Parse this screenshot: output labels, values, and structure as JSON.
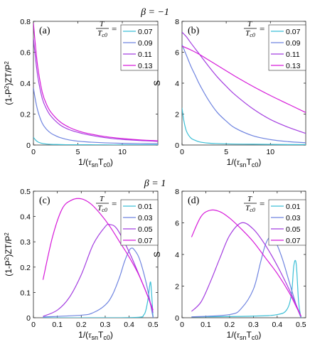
{
  "headings": {
    "top": "β = −1",
    "bottom": "β = 1"
  },
  "legend_title": {
    "top": "T",
    "bottom": "T",
    "eq": "="
  },
  "legend_title_sub": {
    "top": "Tc0",
    "bottom": "Tc0"
  },
  "colors": {
    "cyan": "#3cbfd6",
    "blue": "#6f84e0",
    "purple": "#a43ee0",
    "magenta": "#d61ad9"
  },
  "chart_data": [
    {
      "id": "a",
      "panel_label": "(a)",
      "type": "line",
      "xlabel": "1/(τsnTc0)",
      "ylabel": "(1-P²)ZT/P²",
      "xlim": [
        0,
        14
      ],
      "ylim": [
        0,
        0.8
      ],
      "xticks": [
        0,
        5,
        10
      ],
      "yticks": [
        0,
        0.2,
        0.4,
        0.6,
        0.8
      ],
      "xtick_labels": [
        "0",
        "5",
        "10"
      ],
      "ytick_labels": [
        "0",
        "0.2",
        "0.4",
        "0.6",
        "0.8"
      ],
      "legend_position": "top-right",
      "series": [
        {
          "name": "0.07",
          "color": "cyan",
          "x": [
            0,
            0.2,
            0.5,
            1,
            1.5,
            2,
            3,
            4,
            6,
            8,
            10,
            12,
            14
          ],
          "y": [
            0.05,
            0.035,
            0.02,
            0.01,
            0.006,
            0.004,
            0.003,
            0.002,
            0.002,
            0.001,
            0.001,
            0.001,
            0.001
          ]
        },
        {
          "name": "0.09",
          "color": "blue",
          "x": [
            0,
            0.2,
            0.5,
            1,
            1.5,
            2,
            2.5,
            3,
            4,
            5,
            6,
            8,
            10,
            12,
            14
          ],
          "y": [
            0.37,
            0.3,
            0.22,
            0.14,
            0.1,
            0.075,
            0.06,
            0.048,
            0.033,
            0.025,
            0.02,
            0.014,
            0.011,
            0.009,
            0.008
          ]
        },
        {
          "name": "0.11",
          "color": "purple",
          "x": [
            0,
            0.2,
            0.5,
            1,
            1.5,
            2,
            3,
            4,
            5,
            6,
            8,
            10,
            12,
            14
          ],
          "y": [
            0.69,
            0.58,
            0.44,
            0.3,
            0.23,
            0.185,
            0.13,
            0.1,
            0.082,
            0.068,
            0.048,
            0.036,
            0.029,
            0.024
          ]
        },
        {
          "name": "0.13",
          "color": "magenta",
          "x": [
            0,
            0.2,
            0.5,
            1,
            1.5,
            2,
            3,
            4,
            5,
            6,
            8,
            10,
            12,
            14
          ],
          "y": [
            0.79,
            0.66,
            0.5,
            0.34,
            0.26,
            0.21,
            0.15,
            0.115,
            0.092,
            0.076,
            0.055,
            0.042,
            0.033,
            0.027
          ]
        }
      ]
    },
    {
      "id": "b",
      "panel_label": "(b)",
      "type": "line",
      "xlabel": "1/(τsnTc0)",
      "ylabel": "S",
      "xlim": [
        0,
        14
      ],
      "ylim": [
        0,
        8
      ],
      "xticks": [
        0,
        5,
        10
      ],
      "yticks": [
        0,
        2,
        4,
        6,
        8
      ],
      "xtick_labels": [
        "0",
        "5",
        "10"
      ],
      "ytick_labels": [
        "0",
        "2",
        "4",
        "6",
        "8"
      ],
      "legend_position": "top-right",
      "series": [
        {
          "name": "0.07",
          "color": "cyan",
          "x": [
            0,
            0.2,
            0.5,
            1,
            1.5,
            2,
            3,
            4,
            6,
            8,
            10,
            12,
            14
          ],
          "y": [
            2.4,
            1.6,
            0.9,
            0.45,
            0.3,
            0.2,
            0.12,
            0.09,
            0.06,
            0.05,
            0.04,
            0.03,
            0.03
          ]
        },
        {
          "name": "0.09",
          "color": "blue",
          "x": [
            0,
            0.5,
            1,
            1.5,
            2,
            3,
            4,
            5,
            6,
            8,
            10,
            12,
            14
          ],
          "y": [
            6.5,
            5.8,
            5.1,
            4.5,
            3.9,
            2.9,
            2.1,
            1.55,
            1.1,
            0.6,
            0.35,
            0.22,
            0.15
          ]
        },
        {
          "name": "0.11",
          "color": "purple",
          "x": [
            0,
            0.5,
            1,
            2,
            3,
            4,
            5,
            6,
            8,
            10,
            12,
            14
          ],
          "y": [
            7.3,
            7.0,
            6.6,
            5.85,
            5.1,
            4.4,
            3.8,
            3.25,
            2.35,
            1.65,
            1.15,
            0.75
          ]
        },
        {
          "name": "0.13",
          "color": "magenta",
          "x": [
            0,
            1,
            2,
            3,
            4,
            5,
            6,
            8,
            10,
            12,
            14
          ],
          "y": [
            6.4,
            6.15,
            5.85,
            5.5,
            5.15,
            4.8,
            4.45,
            3.8,
            3.2,
            2.65,
            2.1
          ]
        }
      ]
    },
    {
      "id": "c",
      "panel_label": "(c)",
      "type": "line",
      "xlabel": "1/(τsnTc0)",
      "ylabel": "(1-P²)ZT/P²",
      "xlim": [
        0,
        0.52
      ],
      "ylim": [
        0,
        0.5
      ],
      "xticks": [
        0,
        0.1,
        0.2,
        0.3,
        0.4,
        0.5
      ],
      "yticks": [
        0,
        0.1,
        0.2,
        0.3,
        0.4,
        0.5
      ],
      "xtick_labels": [
        "0",
        "0.1",
        "0.2",
        "0.3",
        "0.4",
        "0.5"
      ],
      "ytick_labels": [
        "0",
        "0.1",
        "0.2",
        "0.3",
        "0.4",
        "0.5"
      ],
      "legend_position": "top-right",
      "series": [
        {
          "name": "0.01",
          "color": "cyan",
          "x": [
            0.04,
            0.3,
            0.44,
            0.46,
            0.47,
            0.48,
            0.485,
            0.49,
            0.495,
            0.5
          ],
          "y": [
            0.0,
            0.0,
            0.002,
            0.01,
            0.03,
            0.08,
            0.12,
            0.14,
            0.08,
            0.0
          ]
        },
        {
          "name": "0.03",
          "color": "blue",
          "x": [
            0.04,
            0.2,
            0.25,
            0.3,
            0.33,
            0.36,
            0.38,
            0.4,
            0.41,
            0.42,
            0.44,
            0.46,
            0.48,
            0.5
          ],
          "y": [
            0.003,
            0.01,
            0.02,
            0.05,
            0.09,
            0.16,
            0.22,
            0.265,
            0.275,
            0.27,
            0.24,
            0.18,
            0.1,
            0.0
          ]
        },
        {
          "name": "0.05",
          "color": "purple",
          "x": [
            0.04,
            0.1,
            0.15,
            0.2,
            0.25,
            0.3,
            0.32,
            0.35,
            0.4,
            0.45,
            0.48,
            0.5
          ],
          "y": [
            0.005,
            0.03,
            0.08,
            0.17,
            0.29,
            0.36,
            0.368,
            0.35,
            0.26,
            0.15,
            0.08,
            0.02
          ]
        },
        {
          "name": "0.07",
          "color": "magenta",
          "x": [
            0.04,
            0.08,
            0.12,
            0.16,
            0.2,
            0.24,
            0.28,
            0.32,
            0.36,
            0.4,
            0.44,
            0.48,
            0.5
          ],
          "y": [
            0.15,
            0.32,
            0.43,
            0.465,
            0.47,
            0.45,
            0.41,
            0.36,
            0.3,
            0.24,
            0.17,
            0.08,
            0.03
          ]
        }
      ]
    },
    {
      "id": "d",
      "panel_label": "(d)",
      "type": "line",
      "xlabel": "1/(τsnTc0)",
      "ylabel": "S",
      "xlim": [
        0,
        0.52
      ],
      "ylim": [
        0,
        8
      ],
      "xticks": [
        0,
        0.1,
        0.2,
        0.3,
        0.4,
        0.5
      ],
      "yticks": [
        0,
        2,
        4,
        6,
        8
      ],
      "xtick_labels": [
        "0",
        "0.1",
        "0.2",
        "0.3",
        "0.4",
        "0.5"
      ],
      "ytick_labels": [
        "0",
        "2",
        "4",
        "6",
        "8"
      ],
      "legend_position": "top-right",
      "series": [
        {
          "name": "0.01",
          "color": "cyan",
          "x": [
            0.04,
            0.3,
            0.4,
            0.44,
            0.46,
            0.47,
            0.48,
            0.49,
            0.5
          ],
          "y": [
            0.05,
            0.1,
            0.2,
            0.5,
            1.5,
            3.3,
            3.4,
            1.0,
            0.0
          ]
        },
        {
          "name": "0.03",
          "color": "blue",
          "x": [
            0.04,
            0.2,
            0.25,
            0.3,
            0.33,
            0.35,
            0.37,
            0.39,
            0.42,
            0.45,
            0.48,
            0.5
          ],
          "y": [
            0.05,
            0.2,
            0.6,
            1.8,
            3.5,
            4.6,
            5.1,
            4.9,
            3.8,
            2.3,
            0.8,
            0.0
          ]
        },
        {
          "name": "0.05",
          "color": "purple",
          "x": [
            0.04,
            0.08,
            0.12,
            0.16,
            0.2,
            0.25,
            0.3,
            0.35,
            0.4,
            0.45,
            0.48,
            0.5
          ],
          "y": [
            0.4,
            1.0,
            2.3,
            3.8,
            5.2,
            6.0,
            5.6,
            4.6,
            3.3,
            1.8,
            0.8,
            0.1
          ]
        },
        {
          "name": "0.07",
          "color": "magenta",
          "x": [
            0.04,
            0.08,
            0.12,
            0.16,
            0.2,
            0.25,
            0.3,
            0.35,
            0.4,
            0.45,
            0.48,
            0.5
          ],
          "y": [
            5.1,
            6.4,
            6.8,
            6.7,
            6.3,
            5.6,
            4.8,
            3.8,
            2.8,
            1.6,
            0.7,
            0.1
          ]
        }
      ]
    }
  ]
}
